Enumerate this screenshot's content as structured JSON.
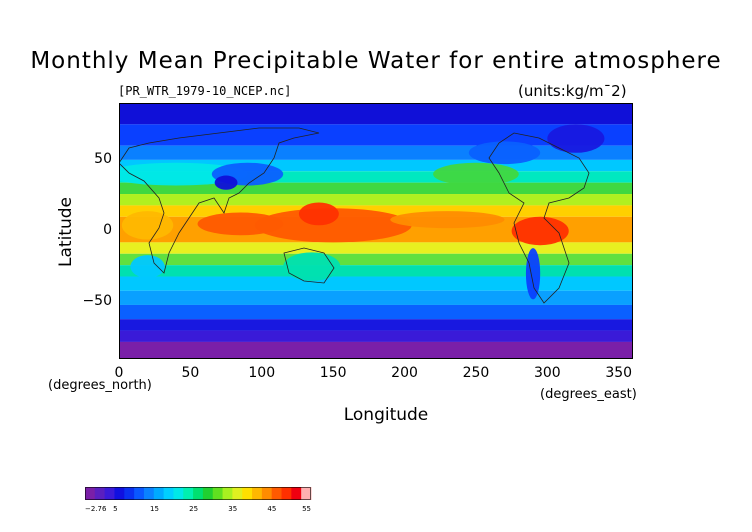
{
  "title": "Monthly Mean Precipitable Water for entire atmosphere",
  "source_label": "[PR_WTR_1979-10_NCEP.nc]",
  "units_label": "(units:kg/m¯2)",
  "axes": {
    "x_label": "Longitude",
    "y_label": "Latitude",
    "x_units": "(degrees_east)",
    "y_units": "(degrees_north)",
    "x_ticks": [
      "0",
      "50",
      "100",
      "150",
      "200",
      "250",
      "300",
      "350"
    ],
    "x_tick_values": [
      0,
      50,
      100,
      150,
      200,
      250,
      300,
      350
    ],
    "y_ticks": [
      "50",
      "0",
      "−50"
    ],
    "y_tick_values": [
      50,
      0,
      -50
    ],
    "xlim": [
      0,
      360
    ],
    "ylim": [
      -90,
      90
    ]
  },
  "colorbar": {
    "labels": [
      "−2.76",
      "5",
      "15",
      "25",
      "35",
      "45",
      "55"
    ],
    "label_values": [
      -2.76,
      5,
      15,
      25,
      35,
      45,
      55
    ],
    "range": [
      -2.76,
      55
    ],
    "colors": [
      "#7a1fa8",
      "#5a1fc0",
      "#3a1ad8",
      "#1010e0",
      "#0a30f0",
      "#0a58ff",
      "#0a82ff",
      "#00aaff",
      "#00cfff",
      "#00e8e8",
      "#00f0b0",
      "#00e070",
      "#20d030",
      "#60e020",
      "#a8f020",
      "#e0f020",
      "#ffe000",
      "#ffb800",
      "#ff8c00",
      "#ff5a00",
      "#ff3000",
      "#f00010",
      "#ffb0b0"
    ]
  },
  "chart_data": {
    "type": "heatmap",
    "title": "Monthly Mean Precipitable Water for entire atmosphere",
    "xlabel": "Longitude",
    "ylabel": "Latitude",
    "x_range": [
      0,
      360
    ],
    "y_range": [
      -90,
      90
    ],
    "value_range": [
      -2.76,
      55
    ],
    "units": "kg/m¯2"
  }
}
